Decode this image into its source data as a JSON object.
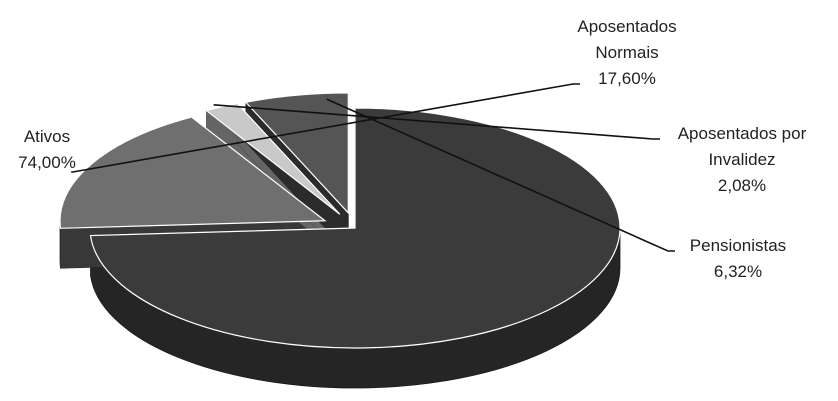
{
  "chart_data": {
    "type": "pie",
    "title": "",
    "style": "3d-exploded",
    "slices": [
      {
        "name_lines": [
          "Ativos"
        ],
        "pct_text": "74,00%",
        "value": 74.0,
        "color": "#3b3b3b",
        "exploded": false
      },
      {
        "name_lines": [
          "Aposentados",
          "Normais"
        ],
        "pct_text": "17,60%",
        "value": 17.6,
        "color": "#6f6f6f",
        "exploded": true
      },
      {
        "name_lines": [
          "Aposentados por",
          "Invalidez"
        ],
        "pct_text": "2,08%",
        "value": 2.08,
        "color": "#c9c9c9",
        "exploded": true
      },
      {
        "name_lines": [
          "Pensionistas"
        ],
        "pct_text": "6,32%",
        "value": 6.32,
        "color": "#555555",
        "exploded": true
      }
    ]
  }
}
